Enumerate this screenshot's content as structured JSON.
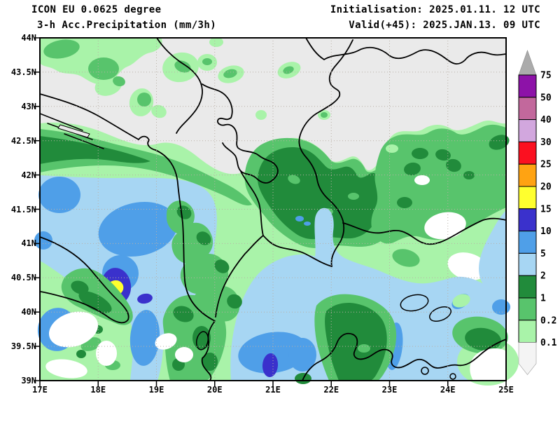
{
  "header": {
    "model_line": "ICON EU 0.0625 degree",
    "product_line": "3-h Acc.Precipitation (mm/3h)",
    "init_line": "Initialisation: 2025.01.11. 12 UTC",
    "valid_line": "Valid(+45): 2025.JAN.13. 09 UTC"
  },
  "axes": {
    "lat_labels": [
      "44N",
      "43.5N",
      "43N",
      "42.5N",
      "42N",
      "41.5N",
      "41N",
      "40.5N",
      "40N",
      "39.5N",
      "39N"
    ],
    "lon_labels": [
      "17E",
      "18E",
      "19E",
      "20E",
      "21E",
      "22E",
      "23E",
      "24E",
      "25E"
    ],
    "lon_range_deg": [
      17,
      25
    ],
    "lat_range_deg": [
      39,
      44
    ]
  },
  "legend": {
    "unit": "mm/3h",
    "labels_top_to_bottom": [
      "75",
      "50",
      "40",
      "30",
      "25",
      "20",
      "15",
      "10",
      "5",
      "2",
      "1",
      "0.2",
      "0.1"
    ],
    "segment_colors_top_to_bottom": [
      "#8d12a8",
      "#c2689c",
      "#d2a7de",
      "#fb1020",
      "#ffa312",
      "#ffff2e",
      "#3a31cc",
      "#4f9fe8",
      "#a7d6f3",
      "#218b3b",
      "#58c46c",
      "#a9f3a9"
    ],
    "above_max_color": "#ababab",
    "below_min_color": "#f4f4f4"
  },
  "precip_palette": {
    "dry_background": "#eaeaea",
    "trace_below_0.1": "#ffffff",
    "0.1-0.2": "#a9f3a9",
    "0.2-1": "#58c46c",
    "1-2": "#218b3b",
    "2-5": "#a7d6f3",
    "5-10": "#4f9fe8",
    "10-15": "#3a31cc",
    "15-20": "#ffff2e"
  }
}
